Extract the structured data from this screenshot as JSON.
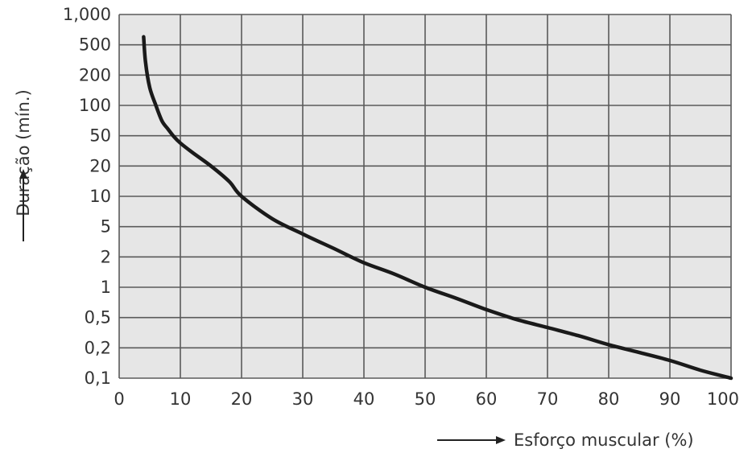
{
  "chart_data": {
    "type": "line",
    "title": "",
    "xlabel": "Esforço muscular (%)",
    "ylabel": "Duração (mín.)",
    "xlim": [
      0,
      100
    ],
    "ylim": [
      0.1,
      1000
    ],
    "yscale": "log-custom",
    "grid": true,
    "x_ticks": [
      "0",
      "10",
      "20",
      "30",
      "40",
      "50",
      "60",
      "70",
      "80",
      "90",
      "100"
    ],
    "y_ticks": [
      "0,1",
      "0,2",
      "0,5",
      "1",
      "2",
      "5",
      "10",
      "20",
      "50",
      "100",
      "200",
      "500",
      "1,000"
    ],
    "series": [
      {
        "points": [
          [
            4,
            600
          ],
          [
            4.3,
            300
          ],
          [
            5,
            150
          ],
          [
            6,
            100
          ],
          [
            7,
            70
          ],
          [
            8,
            58
          ],
          [
            9,
            48
          ],
          [
            10,
            40
          ],
          [
            12,
            30
          ],
          [
            15,
            20
          ],
          [
            18,
            14
          ],
          [
            20,
            10
          ],
          [
            25,
            6
          ],
          [
            30,
            4
          ],
          [
            35,
            2.6
          ],
          [
            40,
            1.75
          ],
          [
            45,
            1.35
          ],
          [
            50,
            1
          ],
          [
            55,
            0.78
          ],
          [
            60,
            0.6
          ],
          [
            65,
            0.47
          ],
          [
            70,
            0.37
          ],
          [
            75,
            0.29
          ],
          [
            80,
            0.22
          ],
          [
            85,
            0.18
          ],
          [
            90,
            0.15
          ],
          [
            95,
            0.12
          ],
          [
            100,
            0.1
          ]
        ]
      }
    ],
    "colors": {
      "plot_bg": "#e6e6e6",
      "grid": "#5a5a5a",
      "line": "#1a1a1a",
      "text": "#333333"
    }
  }
}
